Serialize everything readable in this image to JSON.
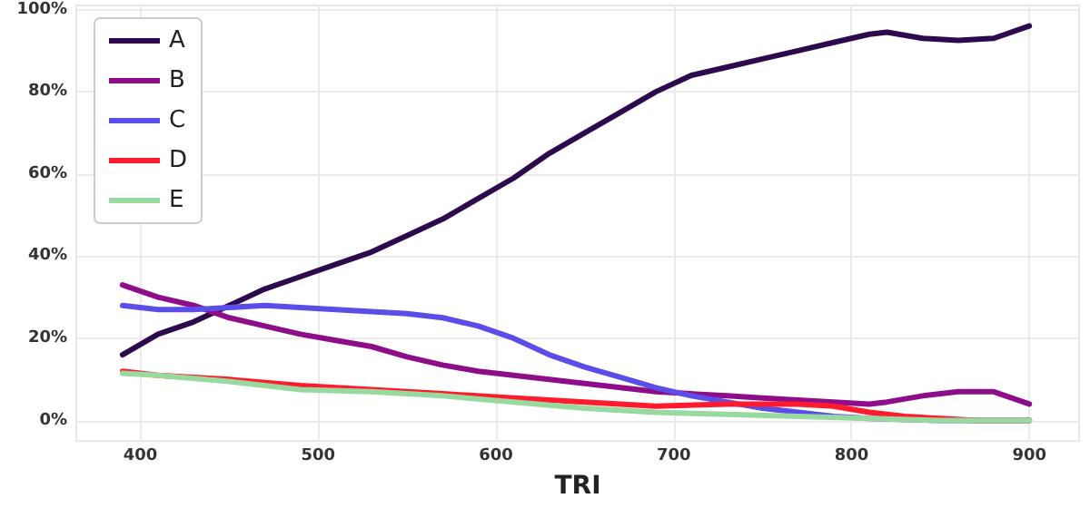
{
  "chart_data": {
    "type": "line",
    "xlabel": "TRI",
    "xlim": [
      364,
      928
    ],
    "ylim": [
      -5,
      101
    ],
    "xticks": [
      400,
      500,
      600,
      700,
      800,
      900
    ],
    "yticks": [
      {
        "value": 0,
        "label": "0%"
      },
      {
        "value": 20,
        "label": "20%"
      },
      {
        "value": 40,
        "label": "40%"
      },
      {
        "value": 60,
        "label": "60%"
      },
      {
        "value": 80,
        "label": "80%"
      },
      {
        "value": 100,
        "label": "100%"
      }
    ],
    "grid": true,
    "legend": "top left",
    "marker": "none",
    "line_style": "solid",
    "series": [
      {
        "name": "A",
        "color": "#2d0a4e",
        "x": [
          390,
          410,
          430,
          450,
          470,
          490,
          510,
          530,
          550,
          570,
          590,
          610,
          630,
          650,
          670,
          690,
          710,
          730,
          750,
          770,
          790,
          810,
          820,
          840,
          860,
          880,
          900
        ],
        "values": [
          16,
          21,
          24,
          28,
          32,
          35,
          38,
          41,
          45,
          49,
          54,
          59,
          65,
          70,
          75,
          80,
          84,
          86,
          88,
          90,
          92,
          94,
          94.5,
          93,
          92.5,
          93,
          96
        ]
      },
      {
        "name": "B",
        "color": "#8e0e8a",
        "x": [
          390,
          410,
          430,
          450,
          470,
          490,
          510,
          530,
          550,
          570,
          590,
          610,
          630,
          650,
          670,
          690,
          710,
          730,
          750,
          770,
          790,
          810,
          820,
          840,
          860,
          880,
          900
        ],
        "values": [
          33,
          30,
          28,
          25,
          23,
          21,
          19.5,
          18,
          15.5,
          13.5,
          12,
          11,
          10,
          9,
          8,
          7,
          6.5,
          6,
          5.5,
          5,
          4.5,
          4,
          4.5,
          6,
          7,
          7,
          4
        ]
      },
      {
        "name": "C",
        "color": "#5b4ee8",
        "x": [
          390,
          410,
          430,
          450,
          470,
          490,
          510,
          530,
          550,
          570,
          590,
          610,
          630,
          650,
          670,
          690,
          710,
          730,
          750,
          770,
          790,
          810,
          850,
          900
        ],
        "values": [
          28,
          27,
          27,
          27.5,
          28,
          27.5,
          27,
          26.5,
          26,
          25,
          23,
          20,
          16,
          13,
          10.5,
          8,
          6,
          4.5,
          3,
          2,
          1,
          0.5,
          0,
          0
        ]
      },
      {
        "name": "D",
        "color": "#ff1a2e",
        "x": [
          390,
          410,
          450,
          490,
          530,
          570,
          610,
          650,
          690,
          730,
          770,
          790,
          810,
          830,
          850,
          870,
          900
        ],
        "values": [
          12,
          11,
          10,
          8.5,
          7.5,
          6.5,
          5.5,
          4.5,
          3.5,
          4,
          4,
          3.5,
          2,
          1,
          0.5,
          0,
          0
        ]
      },
      {
        "name": "E",
        "color": "#98d9a0",
        "x": [
          390,
          410,
          450,
          490,
          530,
          570,
          610,
          650,
          690,
          730,
          770,
          810,
          850,
          900
        ],
        "values": [
          11.5,
          11,
          9.5,
          7.5,
          7,
          6,
          4.5,
          3,
          2,
          1.5,
          1,
          0.5,
          0,
          0
        ]
      }
    ]
  }
}
